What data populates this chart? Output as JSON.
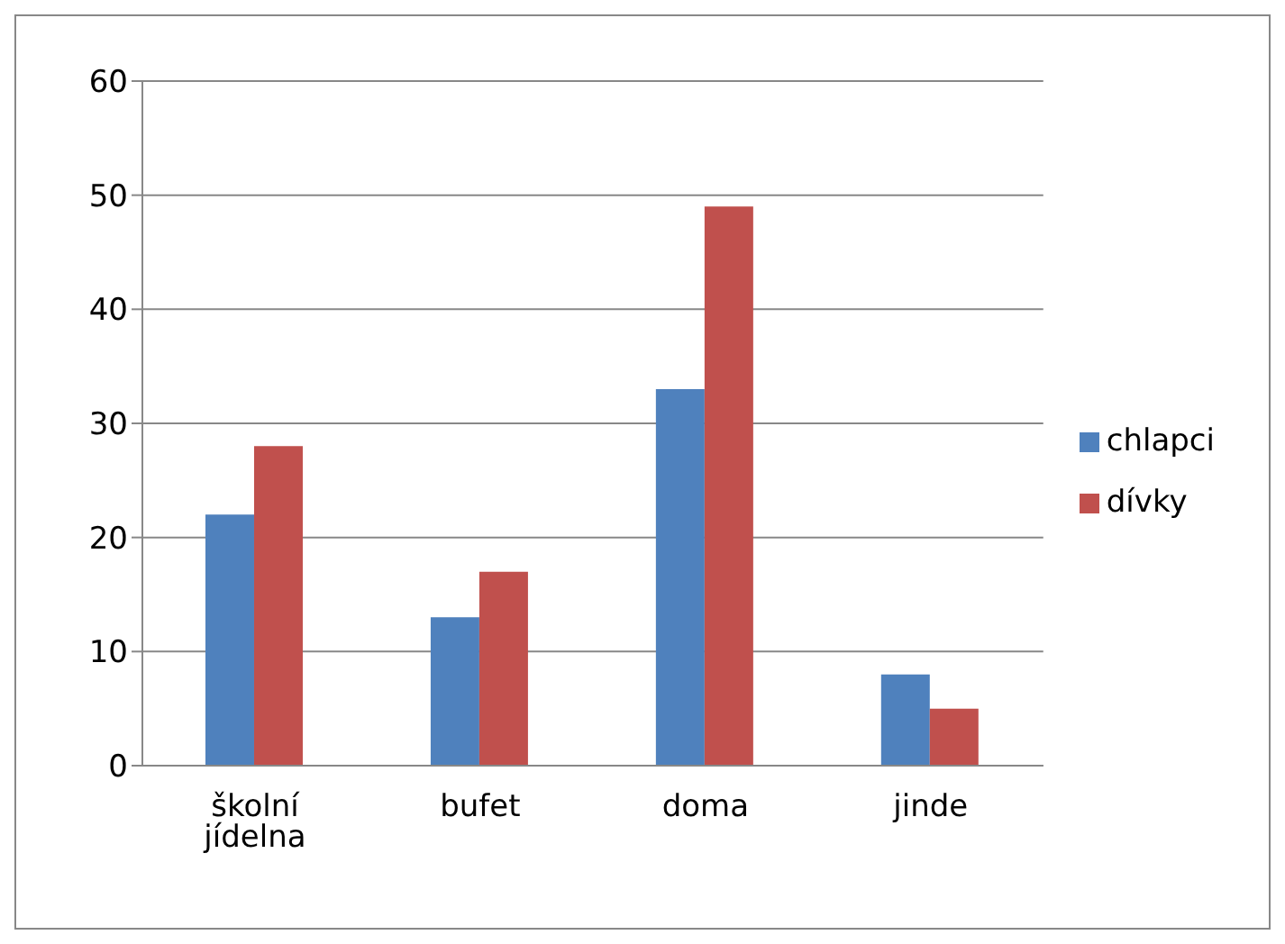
{
  "chart_data": {
    "type": "bar",
    "categories": [
      "školní jídelna",
      "bufet",
      "doma",
      "jinde"
    ],
    "series": [
      {
        "name": "chlapci",
        "color": "#4f81bd",
        "values": [
          22,
          13,
          33,
          8
        ]
      },
      {
        "name": "dívky",
        "color": "#c0504d",
        "values": [
          28,
          17,
          49,
          5
        ]
      }
    ],
    "ylim": [
      0,
      60
    ],
    "yticks": [
      0,
      10,
      20,
      30,
      40,
      50,
      60
    ],
    "grid": "y",
    "legend": "right"
  }
}
